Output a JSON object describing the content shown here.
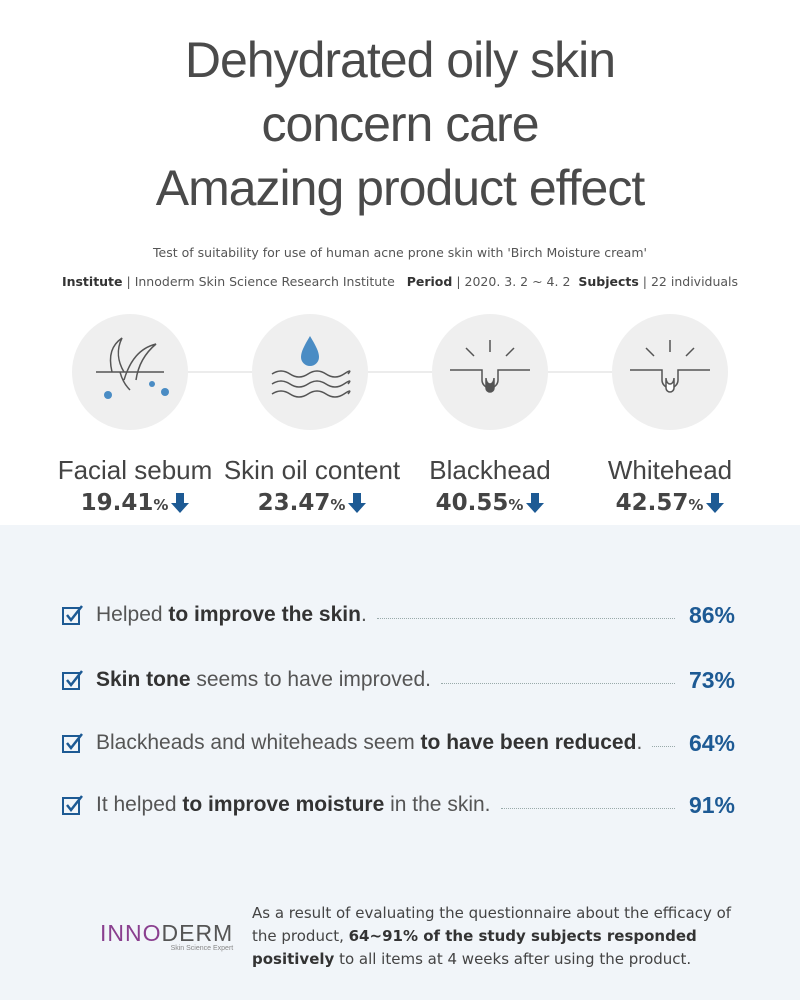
{
  "header": {
    "title_lines": [
      "Dehydrated oily skin",
      "concern care",
      "Amazing product effect"
    ],
    "subtitle": "Test of suitability for use of human acne prone skin with 'Birch Moisture cream'",
    "separator": "|",
    "info": [
      {
        "label": "Institute",
        "value": "Innoderm Skin Science Research Institute"
      },
      {
        "label": "Period",
        "value": "2020. 3. 2 ~ 4. 2"
      },
      {
        "label": "Subjects",
        "value": "22 individuals"
      }
    ]
  },
  "metrics": [
    {
      "label": "Facial sebum",
      "value": "19.41",
      "unit": "%"
    },
    {
      "label": "Skin oil content",
      "value": "23.47",
      "unit": "%"
    },
    {
      "label": "Blackhead",
      "value": "40.55",
      "unit": "%"
    },
    {
      "label": "Whitehead",
      "value": "42.57",
      "unit": "%"
    }
  ],
  "survey": [
    {
      "parts": [
        {
          "text": "Helped ",
          "bold": false
        },
        {
          "text": "to improve the skin",
          "bold": true
        },
        {
          "text": ".",
          "bold": false
        }
      ],
      "percent": "86%"
    },
    {
      "parts": [
        {
          "text": "Skin tone",
          "bold": true
        },
        {
          "text": " seems to have improved.",
          "bold": false
        }
      ],
      "percent": "73%"
    },
    {
      "parts": [
        {
          "text": "Blackheads and whiteheads seem ",
          "bold": false
        },
        {
          "text": "to have been reduced",
          "bold": true
        },
        {
          "text": ".",
          "bold": false
        }
      ],
      "percent": "64%"
    },
    {
      "parts": [
        {
          "text": "It helped ",
          "bold": false
        },
        {
          "text": "to improve moisture",
          "bold": true
        },
        {
          "text": " in the skin.",
          "bold": false
        }
      ],
      "percent": "91%"
    }
  ],
  "footer": {
    "logo_a": "INNO",
    "logo_b": "DERM",
    "logo_tagline": "Skin Science Expert",
    "parts": [
      {
        "text": "As a result of evaluating the questionnaire about the efficacy of the product, ",
        "bold": false
      },
      {
        "text": "64~91% of the study subjects responded positively",
        "bold": true
      },
      {
        "text": " to all items at 4 weeks after using the product.",
        "bold": false
      }
    ]
  }
}
